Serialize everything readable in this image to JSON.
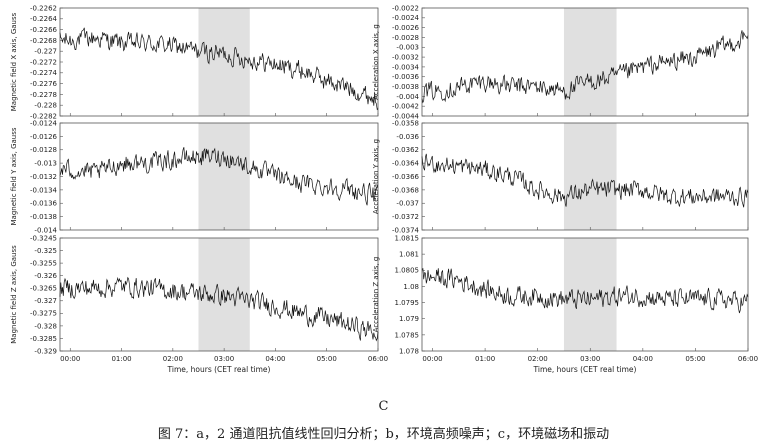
{
  "panel_letter": "C",
  "caption": "图 7：a，2 通道阻抗值线性回归分析；b，环境高频噪声；c，环境磁场和振动",
  "chart_data": [
    {
      "type": "line",
      "ylabel": "Magnetic field X axis, Gauss",
      "xlabel": "",
      "xlim": [
        -0.2,
        6.0
      ],
      "ylim": [
        -0.2282,
        -0.2262
      ],
      "yticks": [
        "-0.2262",
        "-0.2264",
        "-0.2266",
        "-0.2268",
        "-0.227",
        "-0.2272",
        "-0.2274",
        "-0.2276",
        "-0.2278",
        "-0.228",
        "-0.2282"
      ],
      "xticks": [],
      "shaded_region": [
        2.5,
        3.5
      ],
      "x": [
        0.0,
        0.5,
        1.0,
        1.5,
        2.0,
        2.5,
        3.0,
        3.5,
        4.0,
        4.5,
        5.0,
        5.5,
        6.0
      ],
      "y": [
        -0.2268,
        -0.22675,
        -0.22685,
        -0.22685,
        -0.2269,
        -0.227,
        -0.22705,
        -0.22715,
        -0.22725,
        -0.22735,
        -0.22755,
        -0.2277,
        -0.2279
      ]
    },
    {
      "type": "line",
      "ylabel": "Acceleration X axis, g",
      "xlabel": "",
      "xlim": [
        -0.2,
        6.0
      ],
      "ylim": [
        -0.0044,
        -0.0022
      ],
      "yticks": [
        "-0.0022",
        "-0.0024",
        "-0.0026",
        "-0.0028",
        "-0.003",
        "-0.0032",
        "-0.0034",
        "-0.0036",
        "-0.0038",
        "-0.004",
        "-0.0042",
        "-0.0044"
      ],
      "xticks": [],
      "shaded_region": [
        2.5,
        3.5
      ],
      "x": [
        0.0,
        0.5,
        1.0,
        1.5,
        2.0,
        2.5,
        3.0,
        3.5,
        4.0,
        4.5,
        5.0,
        5.5,
        6.0
      ],
      "y": [
        -0.0039,
        -0.0038,
        -0.0037,
        -0.0038,
        -0.0038,
        -0.0039,
        -0.0037,
        -0.0036,
        -0.0034,
        -0.0033,
        -0.0032,
        -0.003,
        -0.0028
      ]
    },
    {
      "type": "line",
      "ylabel": "Magnetic field Y axis, Gauss",
      "xlabel": "",
      "xlim": [
        -0.2,
        6.0
      ],
      "ylim": [
        -0.014,
        -0.0124
      ],
      "yticks": [
        "-0.0124",
        "-0.0126",
        "-0.0128",
        "-0.013",
        "-0.0132",
        "-0.0134",
        "-0.0136",
        "-0.0138",
        "-0.014"
      ],
      "xticks": [],
      "shaded_region": [
        2.5,
        3.5
      ],
      "x": [
        0.0,
        0.5,
        1.0,
        1.5,
        2.0,
        2.5,
        3.0,
        3.5,
        4.0,
        4.5,
        5.0,
        5.5,
        6.0
      ],
      "y": [
        -0.0131,
        -0.01315,
        -0.013,
        -0.013,
        -0.01295,
        -0.0129,
        -0.0129,
        -0.01305,
        -0.0132,
        -0.0133,
        -0.01335,
        -0.0134,
        -0.0135
      ]
    },
    {
      "type": "line",
      "ylabel": "Acceleration Y axis, g",
      "xlabel": "",
      "xlim": [
        -0.2,
        6.0
      ],
      "ylim": [
        -0.0374,
        -0.0358
      ],
      "yticks": [
        "-0.0358",
        "-0.036",
        "-0.0362",
        "-0.0364",
        "-0.0366",
        "-0.0368",
        "-0.037",
        "-0.0372",
        "-0.0374"
      ],
      "xticks": [],
      "shaded_region": [
        2.5,
        3.5
      ],
      "x": [
        0.0,
        0.5,
        1.0,
        1.5,
        2.0,
        2.5,
        3.0,
        3.5,
        4.0,
        4.5,
        5.0,
        5.5,
        6.0
      ],
      "y": [
        -0.0364,
        -0.03645,
        -0.0365,
        -0.0366,
        -0.0368,
        -0.0369,
        -0.0368,
        -0.0368,
        -0.0368,
        -0.0369,
        -0.0369,
        -0.0369,
        -0.0369
      ]
    },
    {
      "type": "line",
      "ylabel": "Magnetic field Z axis, Gauss",
      "xlabel": "Time, hours (CET real time)",
      "xlim": [
        -0.2,
        6.0
      ],
      "ylim": [
        -0.329,
        -0.3245
      ],
      "yticks": [
        "-0.3245",
        "-0.325",
        "-0.3255",
        "-0.326",
        "-0.3265",
        "-0.327",
        "-0.3275",
        "-0.328",
        "-0.3285",
        "-0.329"
      ],
      "xticks": [
        "00:00",
        "01:00",
        "02:00",
        "03:00",
        "04:00",
        "05:00",
        "06:00"
      ],
      "shaded_region": [
        2.5,
        3.5
      ],
      "x": [
        0.0,
        0.5,
        1.0,
        1.5,
        2.0,
        2.5,
        3.0,
        3.5,
        4.0,
        4.5,
        5.0,
        5.5,
        6.0
      ],
      "y": [
        -0.3265,
        -0.3265,
        -0.3264,
        -0.3265,
        -0.3266,
        -0.3267,
        -0.3268,
        -0.327,
        -0.3272,
        -0.3275,
        -0.3277,
        -0.328,
        -0.3283
      ]
    },
    {
      "type": "line",
      "ylabel": "Acceleration Z axis, g",
      "xlabel": "Time, hours (CET real time)",
      "xlim": [
        -0.2,
        6.0
      ],
      "ylim": [
        1.078,
        1.0815
      ],
      "yticks": [
        "1.0815",
        "1.081",
        "1.0805",
        "1.08",
        "1.0795",
        "1.079",
        "1.0785",
        "1.078"
      ],
      "xticks": [
        "00:00",
        "01:00",
        "02:00",
        "03:00",
        "04:00",
        "05:00",
        "06:00"
      ],
      "shaded_region": [
        2.5,
        3.5
      ],
      "x": [
        0.0,
        0.5,
        1.0,
        1.5,
        2.0,
        2.5,
        3.0,
        3.5,
        4.0,
        4.5,
        5.0,
        5.5,
        6.0
      ],
      "y": [
        1.0803,
        1.0802,
        1.0799,
        1.0797,
        1.0797,
        1.0796,
        1.0796,
        1.0797,
        1.0797,
        1.0796,
        1.0796,
        1.0796,
        1.0795
      ]
    }
  ]
}
